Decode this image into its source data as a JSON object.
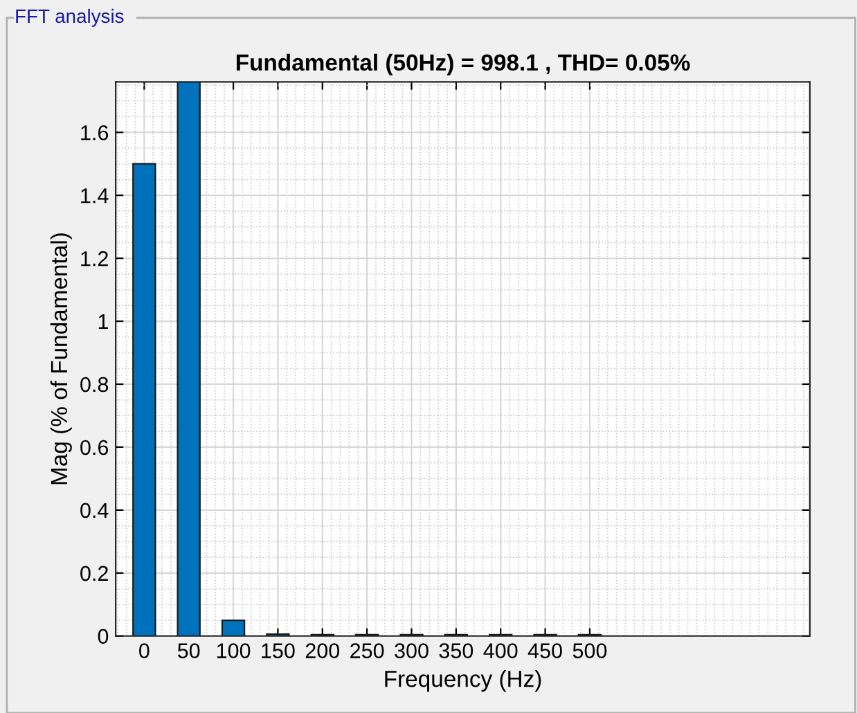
{
  "chart_data": {
    "type": "bar",
    "title": "Fundamental (50Hz) = 998.1 , THD= 0.05%",
    "xlabel": "Frequency (Hz)",
    "ylabel": "Mag (% of Fundamental)",
    "annotations": [
      "FFT analysis"
    ],
    "x": [
      0,
      50,
      100,
      150,
      200,
      250,
      300,
      350,
      400,
      450,
      500
    ],
    "values": [
      1.5,
      1.76,
      0.05,
      0.006,
      0.004,
      0.004,
      0.004,
      0.004,
      0.004,
      0.004,
      0.004
    ],
    "color": "#0072bd",
    "xlim": [
      -32,
      747
    ],
    "xticks": [
      0,
      50,
      100,
      150,
      200,
      250,
      300,
      350,
      400,
      450,
      500
    ],
    "ylim": [
      0,
      1.76
    ],
    "yticks": [
      0,
      0.2,
      0.4,
      0.6,
      0.8,
      1,
      1.2,
      1.4,
      1.6
    ],
    "grid": true,
    "legend": false
  }
}
